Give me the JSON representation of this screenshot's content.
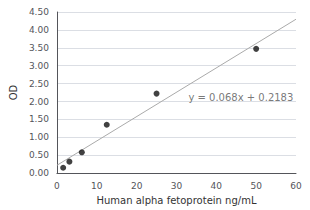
{
  "chart_data": {
    "type": "scatter",
    "x_label": "Human alpha fetoprotein ng/mL",
    "y_label": "OD",
    "series": [
      {
        "type": "line",
        "x": [
          0,
          60
        ],
        "values": [
          0.2183,
          4.2983
        ],
        "color": "#aaaaaa"
      },
      {
        "type": "scatter",
        "x": [
          1.5625,
          3.125,
          6.25,
          12.5,
          25,
          50
        ],
        "values": [
          0.15,
          0.32,
          0.58,
          1.35,
          2.22,
          3.47
        ],
        "color": "#111111"
      }
    ],
    "annotations": [
      {
        "text": "y = 0.068x + 0.2183",
        "x": 33,
        "y": 2.1
      }
    ],
    "xlim": [
      0,
      60
    ],
    "ylim": [
      0,
      4.5
    ],
    "xticks": [
      0,
      10,
      20,
      30,
      40,
      50,
      60
    ],
    "yticks": [
      {
        "value": 0,
        "label": "0.00"
      },
      {
        "value": 0.5,
        "label": "0.50"
      },
      {
        "value": 1,
        "label": "1.00"
      },
      {
        "value": 1.5,
        "label": "1.50"
      },
      {
        "value": 2,
        "label": "2.00"
      },
      {
        "value": 2.5,
        "label": "2.50"
      },
      {
        "value": 3,
        "label": "3.00"
      },
      {
        "value": 3.5,
        "label": "3.50"
      },
      {
        "value": 4,
        "label": "4.00"
      },
      {
        "value": 4.5,
        "label": "4.50"
      }
    ],
    "grid": "y"
  }
}
